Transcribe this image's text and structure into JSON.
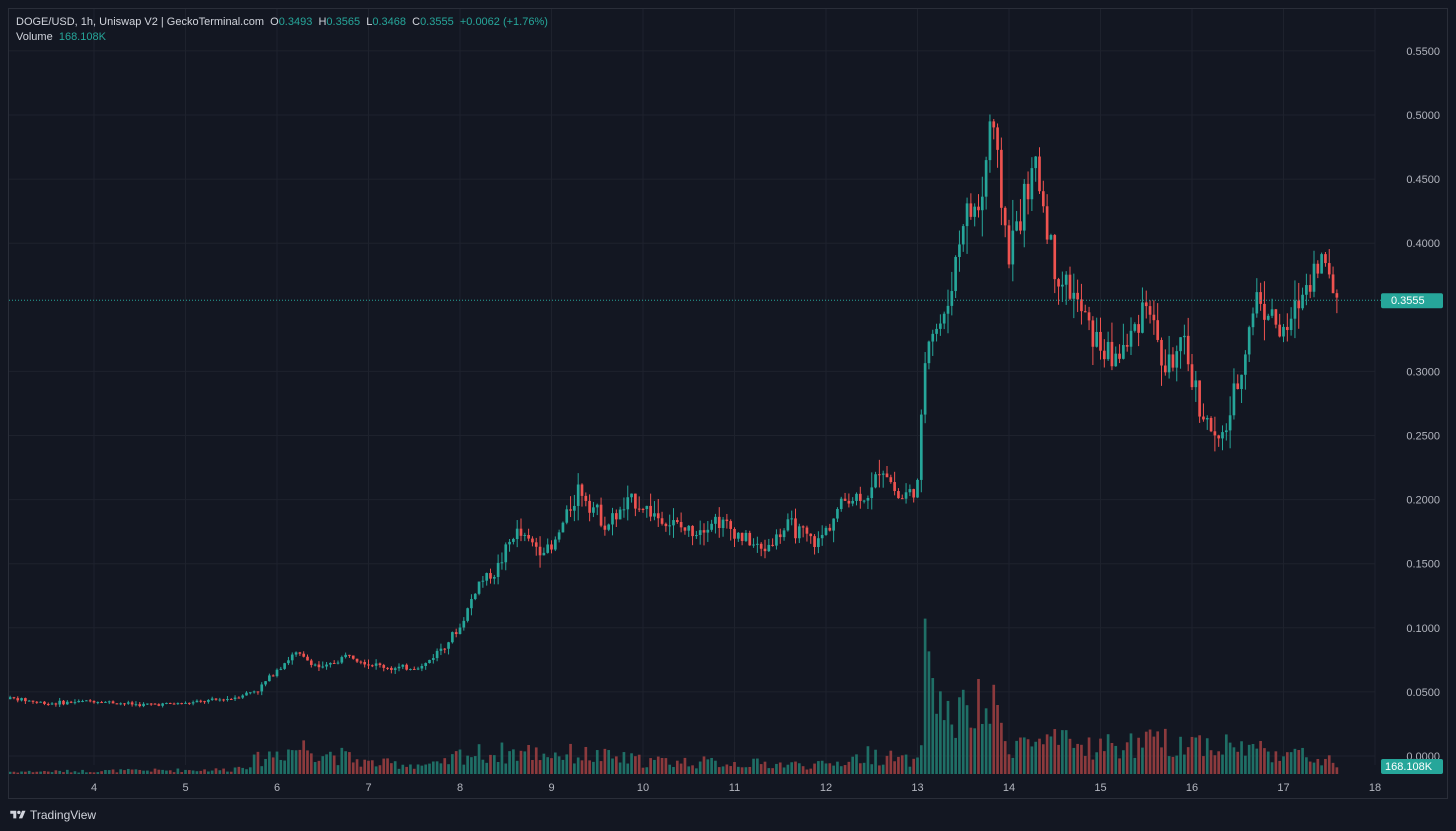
{
  "legend": {
    "pair": "DOGE/USD, 1h, Uniswap V2 | GeckoTerminal.com",
    "o_label": "O",
    "o_value": "0.3493",
    "h_label": "H",
    "h_value": "0.3565",
    "l_label": "L",
    "l_value": "0.3468",
    "c_label": "C",
    "c_value": "0.3555",
    "change": "+0.0062 (+1.76%)",
    "volume_label": "Volume",
    "volume_value": "168.108K"
  },
  "price_badge": "0.3555",
  "volume_badge": "168.108K",
  "footer": {
    "brand": "TradingView"
  },
  "colors": {
    "up": "#26a69a",
    "down": "#ef5350",
    "up_volume": "#1f6f66",
    "down_volume": "#8c3a3d",
    "grid": "#1e222d",
    "background": "#131722"
  },
  "chart_data": {
    "type": "candlestick",
    "interval": "1h",
    "symbol": "DOGE/USD",
    "y_ticks": [
      "0.0000",
      "0.0500",
      "0.1000",
      "0.1500",
      "0.2000",
      "0.2500",
      "0.3000",
      "0.4000",
      "0.4500",
      "0.5000",
      "0.5500"
    ],
    "x_ticks": [
      "4",
      "5",
      "6",
      "7",
      "8",
      "9",
      "10",
      "11",
      "12",
      "13",
      "14",
      "15",
      "16",
      "17",
      "18"
    ],
    "ylim": [
      0.0,
      0.56
    ],
    "last_price": 0.3555,
    "grid": true,
    "price_path": [
      [
        3.0,
        0.046
      ],
      [
        3.5,
        0.041
      ],
      [
        4.0,
        0.043
      ],
      [
        4.5,
        0.04
      ],
      [
        5.0,
        0.041
      ],
      [
        5.5,
        0.045
      ],
      [
        5.8,
        0.052
      ],
      [
        6.0,
        0.068
      ],
      [
        6.2,
        0.08
      ],
      [
        6.5,
        0.068
      ],
      [
        6.8,
        0.08
      ],
      [
        7.0,
        0.072
      ],
      [
        7.3,
        0.068
      ],
      [
        7.6,
        0.07
      ],
      [
        7.8,
        0.085
      ],
      [
        8.0,
        0.1
      ],
      [
        8.2,
        0.135
      ],
      [
        8.4,
        0.145
      ],
      [
        8.6,
        0.175
      ],
      [
        8.8,
        0.165
      ],
      [
        9.0,
        0.16
      ],
      [
        9.3,
        0.21
      ],
      [
        9.6,
        0.18
      ],
      [
        9.9,
        0.2
      ],
      [
        10.2,
        0.185
      ],
      [
        10.5,
        0.175
      ],
      [
        10.8,
        0.185
      ],
      [
        11.0,
        0.175
      ],
      [
        11.3,
        0.16
      ],
      [
        11.6,
        0.18
      ],
      [
        11.9,
        0.165
      ],
      [
        12.2,
        0.2
      ],
      [
        12.5,
        0.205
      ],
      [
        12.6,
        0.23
      ],
      [
        12.8,
        0.2
      ],
      [
        13.0,
        0.21
      ],
      [
        13.1,
        0.33
      ],
      [
        13.3,
        0.34
      ],
      [
        13.5,
        0.42
      ],
      [
        13.7,
        0.43
      ],
      [
        13.8,
        0.5
      ],
      [
        14.0,
        0.39
      ],
      [
        14.1,
        0.42
      ],
      [
        14.3,
        0.46
      ],
      [
        14.5,
        0.38
      ],
      [
        14.7,
        0.36
      ],
      [
        14.9,
        0.33
      ],
      [
        15.1,
        0.31
      ],
      [
        15.3,
        0.32
      ],
      [
        15.5,
        0.36
      ],
      [
        15.7,
        0.3
      ],
      [
        15.9,
        0.32
      ],
      [
        16.1,
        0.27
      ],
      [
        16.3,
        0.24
      ],
      [
        16.5,
        0.29
      ],
      [
        16.7,
        0.36
      ],
      [
        16.9,
        0.34
      ],
      [
        17.0,
        0.325
      ],
      [
        17.2,
        0.36
      ],
      [
        17.4,
        0.39
      ],
      [
        17.6,
        0.3555
      ]
    ],
    "volume_path": [
      [
        3.0,
        0.002
      ],
      [
        5.5,
        0.004
      ],
      [
        6.0,
        0.02
      ],
      [
        6.3,
        0.025
      ],
      [
        7.0,
        0.01
      ],
      [
        7.8,
        0.008
      ],
      [
        8.0,
        0.018
      ],
      [
        8.7,
        0.02
      ],
      [
        9.3,
        0.018
      ],
      [
        10.0,
        0.012
      ],
      [
        11.0,
        0.01
      ],
      [
        12.0,
        0.008
      ],
      [
        12.5,
        0.018
      ],
      [
        13.0,
        0.01
      ],
      [
        13.1,
        0.12
      ],
      [
        13.3,
        0.05
      ],
      [
        13.8,
        0.06
      ],
      [
        14.0,
        0.03
      ],
      [
        15.0,
        0.025
      ],
      [
        16.0,
        0.03
      ],
      [
        17.0,
        0.02
      ],
      [
        17.6,
        0.01
      ]
    ]
  }
}
